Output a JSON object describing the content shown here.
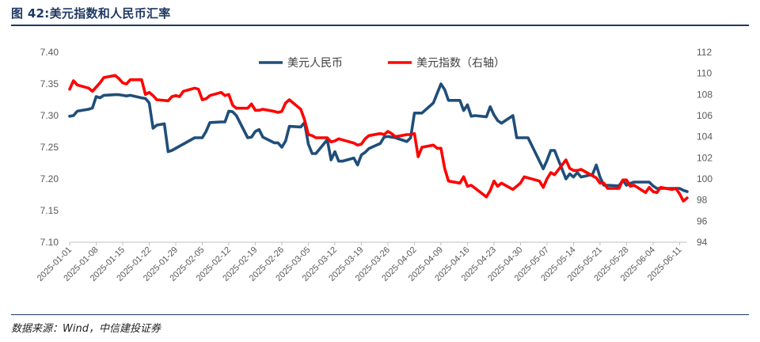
{
  "header": {
    "title": "图 42:美元指数和人民币汇率"
  },
  "footer": {
    "source": "数据来源：Wind，中信建投证券"
  },
  "chart_data": {
    "type": "line",
    "legend_position": "top",
    "left_axis": {
      "ylim": [
        7.1,
        7.4
      ],
      "ticks": [
        "7.10",
        "7.15",
        "7.20",
        "7.25",
        "7.30",
        "7.35",
        "7.40"
      ]
    },
    "right_axis": {
      "ylim": [
        94,
        112
      ],
      "ticks": [
        "94",
        "96",
        "98",
        "100",
        "102",
        "104",
        "106",
        "108",
        "110",
        "112"
      ]
    },
    "x_ticks": [
      "2025-01-01",
      "2025-01-08",
      "2025-01-15",
      "2025-01-22",
      "2025-01-29",
      "2025-02-05",
      "2025-02-12",
      "2025-02-19",
      "2025-02-26",
      "2025-03-05",
      "2025-03-12",
      "2025-03-19",
      "2025-03-26",
      "2025-04-02",
      "2025-04-09",
      "2025-04-16",
      "2025-04-23",
      "2025-04-30",
      "2025-05-07",
      "2025-05-14",
      "2025-05-21",
      "2025-05-28",
      "2025-06-04",
      "2025-06-11"
    ],
    "x_range": [
      "2025-01-01",
      "2025-06-13"
    ],
    "series": [
      {
        "name": "美元人民币",
        "axis": "left",
        "color": "#1f4e79",
        "points": [
          [
            "2025-01-01",
            7.299
          ],
          [
            "2025-01-02",
            7.3
          ],
          [
            "2025-01-03",
            7.307
          ],
          [
            "2025-01-06",
            7.31
          ],
          [
            "2025-01-07",
            7.312
          ],
          [
            "2025-01-08",
            7.33
          ],
          [
            "2025-01-09",
            7.328
          ],
          [
            "2025-01-10",
            7.332
          ],
          [
            "2025-01-13",
            7.333
          ],
          [
            "2025-01-14",
            7.333
          ],
          [
            "2025-01-15",
            7.332
          ],
          [
            "2025-01-16",
            7.331
          ],
          [
            "2025-01-17",
            7.332
          ],
          [
            "2025-01-20",
            7.328
          ],
          [
            "2025-01-21",
            7.327
          ],
          [
            "2025-01-22",
            7.32
          ],
          [
            "2025-01-23",
            7.28
          ],
          [
            "2025-01-24",
            7.285
          ],
          [
            "2025-01-26",
            7.287
          ],
          [
            "2025-01-27",
            7.243
          ],
          [
            "2025-01-28",
            7.245
          ],
          [
            "2025-02-03",
            7.265
          ],
          [
            "2025-02-04",
            7.265
          ],
          [
            "2025-02-05",
            7.265
          ],
          [
            "2025-02-06",
            7.275
          ],
          [
            "2025-02-07",
            7.289
          ],
          [
            "2025-02-10",
            7.29
          ],
          [
            "2025-02-11",
            7.29
          ],
          [
            "2025-02-12",
            7.307
          ],
          [
            "2025-02-13",
            7.306
          ],
          [
            "2025-02-14",
            7.3
          ],
          [
            "2025-02-17",
            7.265
          ],
          [
            "2025-02-18",
            7.266
          ],
          [
            "2025-02-19",
            7.275
          ],
          [
            "2025-02-20",
            7.278
          ],
          [
            "2025-02-21",
            7.266
          ],
          [
            "2025-02-24",
            7.257
          ],
          [
            "2025-02-25",
            7.257
          ],
          [
            "2025-02-26",
            7.25
          ],
          [
            "2025-02-27",
            7.26
          ],
          [
            "2025-02-28",
            7.283
          ],
          [
            "2025-03-03",
            7.282
          ],
          [
            "2025-03-04",
            7.289
          ],
          [
            "2025-03-05",
            7.255
          ],
          [
            "2025-03-06",
            7.24
          ],
          [
            "2025-03-07",
            7.24
          ],
          [
            "2025-03-10",
            7.262
          ],
          [
            "2025-03-11",
            7.23
          ],
          [
            "2025-03-12",
            7.243
          ],
          [
            "2025-03-13",
            7.228
          ],
          [
            "2025-03-14",
            7.228
          ],
          [
            "2025-03-17",
            7.233
          ],
          [
            "2025-03-18",
            7.222
          ],
          [
            "2025-03-19",
            7.238
          ],
          [
            "2025-03-20",
            7.242
          ],
          [
            "2025-03-21",
            7.248
          ],
          [
            "2025-03-24",
            7.256
          ],
          [
            "2025-03-25",
            7.266
          ],
          [
            "2025-03-26",
            7.267
          ],
          [
            "2025-03-27",
            7.266
          ],
          [
            "2025-03-28",
            7.265
          ],
          [
            "2025-03-31",
            7.259
          ],
          [
            "2025-04-01",
            7.265
          ],
          [
            "2025-04-02",
            7.304
          ],
          [
            "2025-04-03",
            7.304
          ],
          [
            "2025-04-04",
            7.304
          ],
          [
            "2025-04-07",
            7.32
          ],
          [
            "2025-04-08",
            7.335
          ],
          [
            "2025-04-09",
            7.35
          ],
          [
            "2025-04-10",
            7.341
          ],
          [
            "2025-04-11",
            7.324
          ],
          [
            "2025-04-14",
            7.324
          ],
          [
            "2025-04-15",
            7.308
          ],
          [
            "2025-04-16",
            7.317
          ],
          [
            "2025-04-17",
            7.299
          ],
          [
            "2025-04-18",
            7.3
          ],
          [
            "2025-04-21",
            7.298
          ],
          [
            "2025-04-22",
            7.314
          ],
          [
            "2025-04-23",
            7.301
          ],
          [
            "2025-04-24",
            7.292
          ],
          [
            "2025-04-25",
            7.288
          ],
          [
            "2025-04-28",
            7.3
          ],
          [
            "2025-04-29",
            7.265
          ],
          [
            "2025-04-30",
            7.265
          ],
          [
            "2025-05-02",
            7.265
          ],
          [
            "2025-05-06",
            7.216
          ],
          [
            "2025-05-07",
            7.229
          ],
          [
            "2025-05-08",
            7.245
          ],
          [
            "2025-05-09",
            7.245
          ],
          [
            "2025-05-12",
            7.2
          ],
          [
            "2025-05-13",
            7.208
          ],
          [
            "2025-05-14",
            7.203
          ],
          [
            "2025-05-15",
            7.21
          ],
          [
            "2025-05-16",
            7.203
          ],
          [
            "2025-05-19",
            7.207
          ],
          [
            "2025-05-20",
            7.222
          ],
          [
            "2025-05-21",
            7.203
          ],
          [
            "2025-05-22",
            7.19
          ],
          [
            "2025-05-23",
            7.19
          ],
          [
            "2025-05-26",
            7.189
          ],
          [
            "2025-05-27",
            7.198
          ],
          [
            "2025-05-28",
            7.19
          ],
          [
            "2025-05-29",
            7.193
          ],
          [
            "2025-05-30",
            7.195
          ],
          [
            "2025-06-03",
            7.195
          ],
          [
            "2025-06-04",
            7.189
          ],
          [
            "2025-06-05",
            7.185
          ],
          [
            "2025-06-06",
            7.185
          ],
          [
            "2025-06-09",
            7.185
          ],
          [
            "2025-06-10",
            7.185
          ],
          [
            "2025-06-11",
            7.185
          ],
          [
            "2025-06-12",
            7.182
          ],
          [
            "2025-06-13",
            7.18
          ]
        ]
      },
      {
        "name": "美元指数（右轴）",
        "axis": "right",
        "color": "#ff0000",
        "points": [
          [
            "2025-01-01",
            108.5
          ],
          [
            "2025-01-02",
            109.3
          ],
          [
            "2025-01-03",
            108.9
          ],
          [
            "2025-01-06",
            108.6
          ],
          [
            "2025-01-07",
            108.3
          ],
          [
            "2025-01-08",
            108.7
          ],
          [
            "2025-01-09",
            109.1
          ],
          [
            "2025-01-10",
            109.6
          ],
          [
            "2025-01-13",
            109.8
          ],
          [
            "2025-01-14",
            109.5
          ],
          [
            "2025-01-15",
            109.1
          ],
          [
            "2025-01-16",
            109.0
          ],
          [
            "2025-01-17",
            109.4
          ],
          [
            "2025-01-20",
            109.4
          ],
          [
            "2025-01-21",
            108.0
          ],
          [
            "2025-01-22",
            108.2
          ],
          [
            "2025-01-23",
            107.9
          ],
          [
            "2025-01-24",
            107.5
          ],
          [
            "2025-01-27",
            107.4
          ],
          [
            "2025-01-28",
            107.8
          ],
          [
            "2025-01-29",
            107.9
          ],
          [
            "2025-01-30",
            107.8
          ],
          [
            "2025-01-31",
            108.3
          ],
          [
            "2025-02-03",
            108.6
          ],
          [
            "2025-02-04",
            108.5
          ],
          [
            "2025-02-05",
            107.5
          ],
          [
            "2025-02-06",
            107.6
          ],
          [
            "2025-02-07",
            107.9
          ],
          [
            "2025-02-10",
            108.2
          ],
          [
            "2025-02-11",
            107.9
          ],
          [
            "2025-02-12",
            108.0
          ],
          [
            "2025-02-13",
            107.0
          ],
          [
            "2025-02-14",
            106.7
          ],
          [
            "2025-02-17",
            106.7
          ],
          [
            "2025-02-18",
            107.1
          ],
          [
            "2025-02-19",
            106.5
          ],
          [
            "2025-02-20",
            106.5
          ],
          [
            "2025-02-21",
            106.6
          ],
          [
            "2025-02-24",
            106.4
          ],
          [
            "2025-02-25",
            106.3
          ],
          [
            "2025-02-26",
            106.4
          ],
          [
            "2025-02-27",
            107.2
          ],
          [
            "2025-02-28",
            107.5
          ],
          [
            "2025-03-03",
            106.6
          ],
          [
            "2025-03-04",
            105.6
          ],
          [
            "2025-03-05",
            104.2
          ],
          [
            "2025-03-06",
            104.1
          ],
          [
            "2025-03-07",
            103.9
          ],
          [
            "2025-03-10",
            103.9
          ],
          [
            "2025-03-11",
            103.5
          ],
          [
            "2025-03-12",
            103.6
          ],
          [
            "2025-03-13",
            103.8
          ],
          [
            "2025-03-14",
            103.7
          ],
          [
            "2025-03-17",
            103.4
          ],
          [
            "2025-03-18",
            103.2
          ],
          [
            "2025-03-19",
            103.3
          ],
          [
            "2025-03-20",
            103.8
          ],
          [
            "2025-03-21",
            104.1
          ],
          [
            "2025-03-24",
            104.3
          ],
          [
            "2025-03-25",
            104.2
          ],
          [
            "2025-03-26",
            104.5
          ],
          [
            "2025-03-27",
            104.3
          ],
          [
            "2025-03-28",
            104.0
          ],
          [
            "2025-03-31",
            104.2
          ],
          [
            "2025-04-01",
            104.2
          ],
          [
            "2025-04-02",
            104.3
          ],
          [
            "2025-04-03",
            102.1
          ],
          [
            "2025-04-04",
            103.0
          ],
          [
            "2025-04-07",
            103.2
          ],
          [
            "2025-04-08",
            102.9
          ],
          [
            "2025-04-09",
            102.9
          ],
          [
            "2025-04-10",
            101.0
          ],
          [
            "2025-04-11",
            99.8
          ],
          [
            "2025-04-14",
            99.6
          ],
          [
            "2025-04-15",
            100.2
          ],
          [
            "2025-04-16",
            99.3
          ],
          [
            "2025-04-17",
            99.4
          ],
          [
            "2025-04-21",
            98.3
          ],
          [
            "2025-04-22",
            98.9
          ],
          [
            "2025-04-23",
            99.8
          ],
          [
            "2025-04-24",
            99.3
          ],
          [
            "2025-04-25",
            99.6
          ],
          [
            "2025-04-28",
            99.0
          ],
          [
            "2025-04-29",
            99.3
          ],
          [
            "2025-04-30",
            99.6
          ],
          [
            "2025-05-01",
            100.2
          ],
          [
            "2025-05-02",
            100.1
          ],
          [
            "2025-05-05",
            99.8
          ],
          [
            "2025-05-06",
            99.2
          ],
          [
            "2025-05-07",
            100.0
          ],
          [
            "2025-05-08",
            100.6
          ],
          [
            "2025-05-09",
            100.4
          ],
          [
            "2025-05-12",
            101.8
          ],
          [
            "2025-05-13",
            101.0
          ],
          [
            "2025-05-14",
            100.8
          ],
          [
            "2025-05-15",
            100.8
          ],
          [
            "2025-05-16",
            100.9
          ],
          [
            "2025-05-19",
            100.3
          ],
          [
            "2025-05-20",
            100.1
          ],
          [
            "2025-05-21",
            99.6
          ],
          [
            "2025-05-22",
            99.6
          ],
          [
            "2025-05-23",
            99.1
          ],
          [
            "2025-05-26",
            99.1
          ],
          [
            "2025-05-27",
            99.9
          ],
          [
            "2025-05-28",
            99.9
          ],
          [
            "2025-05-29",
            99.3
          ],
          [
            "2025-05-30",
            99.4
          ],
          [
            "2025-06-02",
            98.7
          ],
          [
            "2025-06-03",
            99.2
          ],
          [
            "2025-06-04",
            98.8
          ],
          [
            "2025-06-05",
            98.7
          ],
          [
            "2025-06-06",
            99.2
          ],
          [
            "2025-06-09",
            99.0
          ],
          [
            "2025-06-10",
            99.1
          ],
          [
            "2025-06-11",
            98.6
          ],
          [
            "2025-06-12",
            97.9
          ],
          [
            "2025-06-13",
            98.2
          ]
        ]
      }
    ]
  }
}
